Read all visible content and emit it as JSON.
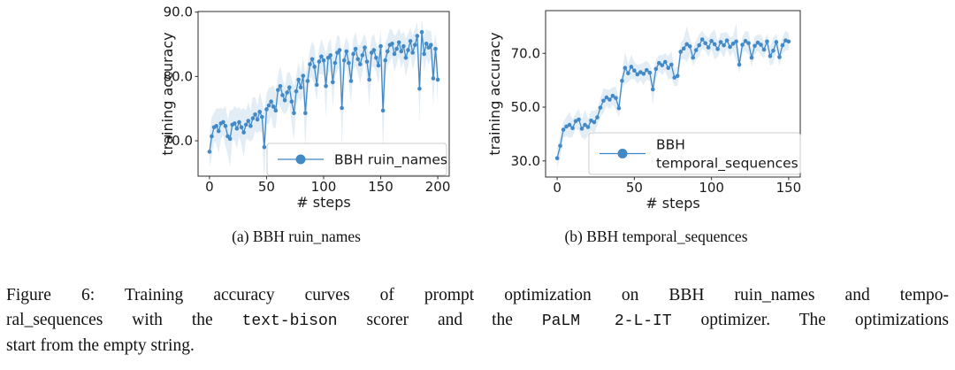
{
  "figure": {
    "subcaption_a": "(a) BBH ruin_names",
    "subcaption_b": "(b) BBH temporal_sequences",
    "caption_lines": [
      [
        {
          "text": "Figure 6:  Training accuracy curves of prompt optimization on BBH ruin_names and tempo-",
          "mono": false
        }
      ],
      [
        {
          "text": "ral_sequences with the ",
          "mono": false
        },
        {
          "text": "text-bison",
          "mono": true
        },
        {
          "text": " scorer and the ",
          "mono": false
        },
        {
          "text": "PaLM 2-L-IT",
          "mono": true
        },
        {
          "text": " optimizer. The optimizations",
          "mono": false
        }
      ],
      [
        {
          "text": "start from the empty string.",
          "mono": false
        }
      ]
    ]
  },
  "colors": {
    "line": "#4189c7",
    "band": "rgba(31,119,180,0.13)",
    "spine": "#2e2e2e",
    "text": "#1a1a1a",
    "legend_border": "#cccccc"
  },
  "chart_data": [
    {
      "id": "a",
      "type": "line",
      "title": "",
      "xlabel": "# steps",
      "ylabel": "training accuracy",
      "legend": [
        "BBH ruin_names"
      ],
      "legend_position": "lower right",
      "grid": false,
      "xlim": [
        -10,
        210
      ],
      "ylim": [
        64.5,
        90.1
      ],
      "xticks": [
        0,
        50,
        100,
        150,
        200
      ],
      "yticks": [
        70,
        80,
        90
      ],
      "ytick_labels": [
        "70.0",
        "80.0",
        "90.0"
      ],
      "x": [
        0,
        2,
        4,
        6,
        8,
        10,
        12,
        14,
        16,
        18,
        20,
        22,
        24,
        26,
        28,
        30,
        32,
        34,
        36,
        38,
        40,
        42,
        44,
        46,
        48,
        50,
        52,
        54,
        56,
        58,
        60,
        62,
        64,
        66,
        68,
        70,
        72,
        74,
        76,
        78,
        80,
        82,
        84,
        86,
        88,
        90,
        92,
        94,
        96,
        98,
        100,
        102,
        104,
        106,
        108,
        110,
        112,
        114,
        116,
        118,
        120,
        122,
        124,
        126,
        128,
        130,
        132,
        134,
        136,
        138,
        140,
        142,
        144,
        146,
        148,
        150,
        152,
        154,
        156,
        158,
        160,
        162,
        164,
        166,
        168,
        170,
        172,
        174,
        176,
        178,
        180,
        182,
        184,
        186,
        188,
        190,
        192,
        194,
        196,
        198,
        200
      ],
      "y": [
        68.3,
        70.7,
        72.1,
        72.3,
        71.5,
        72.7,
        72.9,
        72.3,
        70.7,
        70.3,
        72.5,
        72.7,
        71.9,
        72.9,
        72.1,
        71.3,
        72.5,
        73.1,
        72.3,
        73.5,
        74.1,
        73.3,
        74.5,
        73.7,
        69.0,
        74.9,
        75.5,
        76.1,
        75.3,
        74.7,
        77.9,
        78.5,
        77.1,
        76.3,
        77.5,
        78.3,
        76.1,
        74.3,
        77.7,
        79.5,
        78.3,
        80.1,
        74.3,
        79.3,
        81.9,
        82.7,
        81.5,
        78.7,
        82.3,
        83.1,
        82.5,
        78.5,
        82.9,
        83.3,
        79.1,
        82.1,
        83.7,
        84.1,
        75.1,
        82.5,
        83.9,
        82.1,
        79.3,
        83.5,
        84.3,
        82.7,
        81.9,
        83.3,
        84.5,
        82.3,
        79.5,
        83.7,
        84.1,
        82.9,
        81.7,
        84.7,
        74.7,
        82.5,
        83.9,
        84.9,
        85.1,
        83.5,
        84.3,
        85.3,
        83.9,
        84.7,
        82.9,
        84.1,
        85.5,
        83.7,
        84.9,
        86.3,
        78.1,
        86.9,
        83.5,
        85.1,
        84.5,
        84.9,
        79.7,
        84.3,
        79.5
      ],
      "band_halfwidth": [
        2.5,
        3.0,
        2.2,
        2.8,
        3.5,
        2.4,
        2.0,
        3.2,
        2.6,
        4.5,
        2.2,
        2.8,
        3.1,
        2.3,
        2.7,
        3.8,
        2.2,
        2.9,
        2.4,
        3.3,
        2.6,
        2.1,
        3.0,
        2.5,
        5.5,
        2.4,
        2.8,
        2.2,
        3.4,
        2.7,
        2.3,
        3.1,
        2.6,
        2.2,
        2.9,
        2.5,
        3.6,
        4.2,
        2.4,
        2.8,
        2.2,
        3.0,
        5.8,
        2.6,
        2.3,
        2.8,
        3.2,
        2.5,
        2.1,
        2.7,
        2.4,
        4.8,
        2.2,
        2.6,
        3.9,
        2.3,
        2.8,
        2.1,
        6.2,
        2.5,
        2.2,
        2.9,
        3.5,
        2.4,
        2.6,
        2.2,
        3.0,
        2.5,
        2.1,
        2.8,
        4.1,
        2.3,
        2.6,
        2.2,
        2.9,
        2.4,
        6.8,
        2.7,
        2.2,
        2.5,
        2.1,
        2.8,
        2.4,
        2.2,
        2.6,
        2.3,
        2.9,
        2.5,
        2.1,
        2.7,
        2.4,
        2.2,
        5.2,
        2.0,
        2.8,
        2.3,
        2.6,
        2.2,
        4.4,
        2.5,
        3.9
      ]
    },
    {
      "id": "b",
      "type": "line",
      "title": "",
      "xlabel": "# steps",
      "ylabel": "training accuracy",
      "legend": [
        "BBH",
        "temporal_sequences"
      ],
      "legend_position": "lower right",
      "grid": false,
      "xlim": [
        -7.5,
        157.5
      ],
      "ylim": [
        24.0,
        85.9
      ],
      "xticks": [
        0,
        50,
        100,
        150
      ],
      "yticks": [
        30,
        50,
        70
      ],
      "ytick_labels": [
        "30.0",
        "50.0",
        "70.0"
      ],
      "x": [
        0,
        2,
        4,
        6,
        8,
        10,
        12,
        14,
        16,
        18,
        20,
        22,
        24,
        26,
        28,
        30,
        32,
        34,
        36,
        38,
        40,
        42,
        44,
        46,
        48,
        50,
        52,
        54,
        56,
        58,
        60,
        62,
        64,
        66,
        68,
        70,
        72,
        74,
        76,
        78,
        80,
        82,
        84,
        86,
        88,
        90,
        92,
        94,
        96,
        98,
        100,
        102,
        104,
        106,
        108,
        110,
        112,
        114,
        116,
        118,
        120,
        122,
        124,
        126,
        128,
        130,
        132,
        134,
        136,
        138,
        140,
        142,
        144,
        146,
        148,
        150
      ],
      "y": [
        31.0,
        35.6,
        41.6,
        42.8,
        43.4,
        42.2,
        44.8,
        45.4,
        42.0,
        43.4,
        42.6,
        45.0,
        44.4,
        46.2,
        49.8,
        52.4,
        53.6,
        52.8,
        54.2,
        53.4,
        49.6,
        59.8,
        64.6,
        62.6,
        65.0,
        63.6,
        62.2,
        63.0,
        62.4,
        63.8,
        62.8,
        56.6,
        64.2,
        66.4,
        65.6,
        66.8,
        64.6,
        65.8,
        61.0,
        61.6,
        70.6,
        71.8,
        73.4,
        72.6,
        68.4,
        71.2,
        73.0,
        75.2,
        73.8,
        72.2,
        74.6,
        73.4,
        71.6,
        74.2,
        73.0,
        74.8,
        72.4,
        73.6,
        74.4,
        65.8,
        73.2,
        74.6,
        73.8,
        68.4,
        72.8,
        74.0,
        73.2,
        71.4,
        74.4,
        69.0,
        71.0,
        74.2,
        68.6,
        73.0,
        74.8,
        74.4
      ],
      "band_halfwidth": [
        3.5,
        4.2,
        3.0,
        3.6,
        4.8,
        3.2,
        2.8,
        4.0,
        3.4,
        5.5,
        3.0,
        3.6,
        4.1,
        3.1,
        3.5,
        4.6,
        3.0,
        3.7,
        3.2,
        4.3,
        3.4,
        2.9,
        6.0,
        3.3,
        4.5,
        3.2,
        3.6,
        3.0,
        4.2,
        3.5,
        3.1,
        5.9,
        3.4,
        3.0,
        3.7,
        3.3,
        4.4,
        5.0,
        3.2,
        3.6,
        3.0,
        3.8,
        6.6,
        3.4,
        3.1,
        3.6,
        4.0,
        3.3,
        2.9,
        3.5,
        3.2,
        5.6,
        3.0,
        3.4,
        4.7,
        3.1,
        3.6,
        2.9,
        7.0,
        3.3,
        3.0,
        3.7,
        4.3,
        3.2,
        3.4,
        3.0,
        3.8,
        3.3,
        2.9,
        3.6,
        4.9,
        3.1,
        3.4,
        3.0,
        3.7,
        3.2
      ]
    }
  ]
}
